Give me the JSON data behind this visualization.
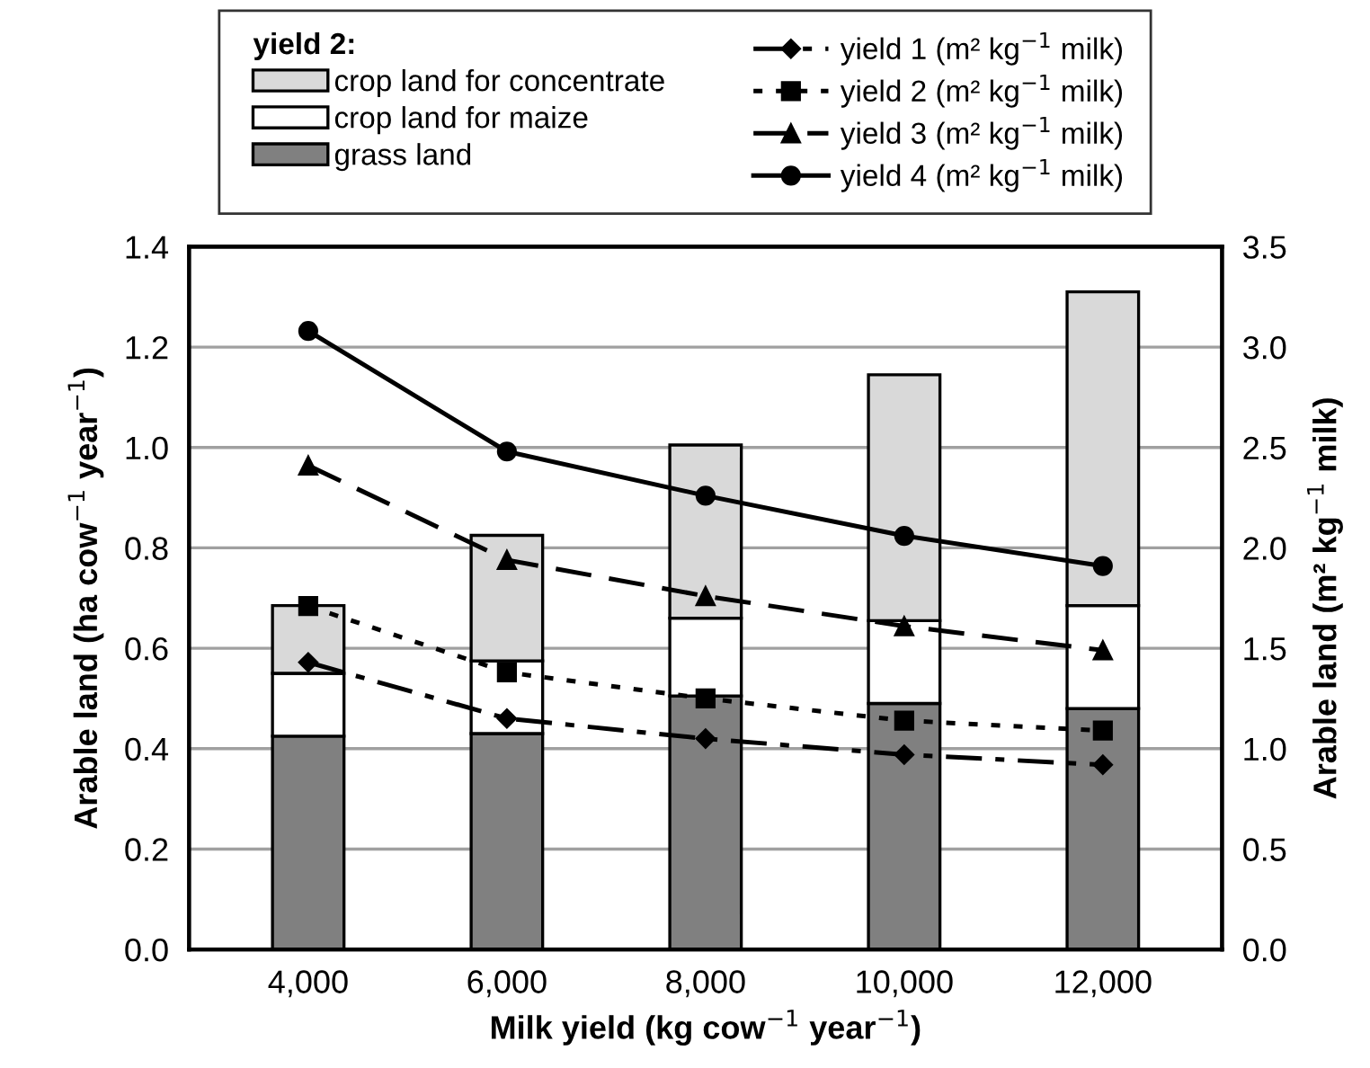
{
  "chart_data": {
    "type": "bar",
    "stacked": true,
    "categories": [
      "4,000",
      "6,000",
      "8,000",
      "10,000",
      "12,000"
    ],
    "xlabel": "Milk yield (kg cow$^{−1}$ year$^{−1}$)",
    "ylabel": "Arable land (ha cow$^{−1}$ year$^{−1}$)",
    "y2label": "Arable land (m² kg$^{−1}$ milk)",
    "legend_title": "yield 2:",
    "legend": "top",
    "grid": "y",
    "ylim": [
      0,
      1.4
    ],
    "yticks": [
      {
        "value": 0,
        "label": "0.0"
      },
      {
        "value": 0.2,
        "label": "0.2"
      },
      {
        "value": 0.4,
        "label": "0.4"
      },
      {
        "value": 0.6,
        "label": "0.6"
      },
      {
        "value": 0.8,
        "label": "0.8"
      },
      {
        "value": 1.0,
        "label": "1.0"
      },
      {
        "value": 1.2,
        "label": "1.2"
      },
      {
        "value": 1.4,
        "label": "1.4"
      }
    ],
    "y2lim": [
      0,
      3.5
    ],
    "y2ticks": [
      {
        "value": 0,
        "label": "0.0"
      },
      {
        "value": 0.5,
        "label": "0.5"
      },
      {
        "value": 1.0,
        "label": "1.0"
      },
      {
        "value": 1.5,
        "label": "1.5"
      },
      {
        "value": 2.0,
        "label": "2.0"
      },
      {
        "value": 2.5,
        "label": "2.5"
      },
      {
        "value": 3.0,
        "label": "3.0"
      },
      {
        "value": 3.5,
        "label": "3.5"
      }
    ],
    "series": [
      {
        "name": "grass land",
        "color": "#808080",
        "values": [
          0.425,
          0.43,
          0.505,
          0.49,
          0.48
        ]
      },
      {
        "name": "crop land for maize",
        "color": "#ffffff",
        "values": [
          0.125,
          0.145,
          0.155,
          0.165,
          0.205
        ]
      },
      {
        "name": "crop land for concentrate",
        "color": "#d9d9d9",
        "values": [
          0.135,
          0.25,
          0.345,
          0.49,
          0.625
        ]
      },
      {
        "name": "yield 1 (m² kg$^{−1}$ milk)",
        "type": "line",
        "axis": "y2",
        "color": "#000000",
        "marker": "diamond",
        "line_style": "dashdot",
        "values": [
          1.43,
          1.15,
          1.05,
          0.97,
          0.92
        ]
      },
      {
        "name": "yield 2 (m² kg$^{−1}$ milk)",
        "type": "line",
        "axis": "y2",
        "color": "#000000",
        "marker": "square",
        "line_style": "dotted",
        "values": [
          1.71,
          1.38,
          1.25,
          1.14,
          1.09
        ]
      },
      {
        "name": "yield 3 (m² kg$^{−1}$ milk)",
        "type": "line",
        "axis": "y2",
        "color": "#000000",
        "marker": "triangle",
        "line_style": "dashed",
        "values": [
          2.41,
          1.94,
          1.76,
          1.61,
          1.49
        ]
      },
      {
        "name": "yield 4 (m² kg$^{−1}$ milk)",
        "type": "line",
        "axis": "y2",
        "color": "#000000",
        "marker": "circle",
        "line_style": "solid",
        "values": [
          3.08,
          2.48,
          2.26,
          2.06,
          1.91
        ]
      }
    ]
  }
}
